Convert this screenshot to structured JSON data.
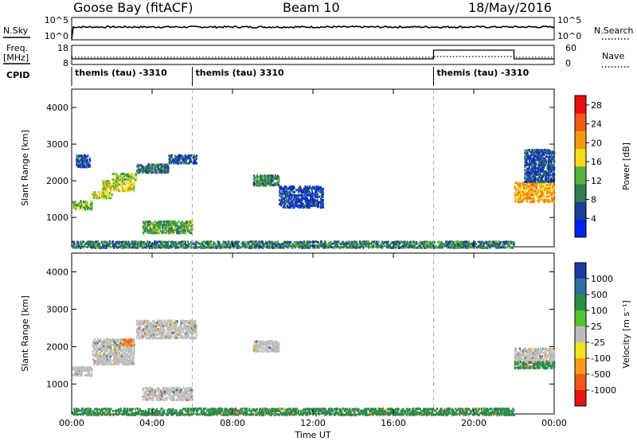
{
  "header": {
    "site": "Goose Bay (fitACF)",
    "beam": "Beam 10",
    "date": "18/May/2016"
  },
  "strips": {
    "nsky_label": "N.Sky",
    "nsky_ticks": [
      "10^5",
      "10^0"
    ],
    "nsearch_label": "N.Search",
    "nsearch_ticks": [
      "10^5",
      "10^0"
    ],
    "freq_label_line1": "Freq.",
    "freq_label_line2": "[MHz]",
    "freq_ticks": [
      "18",
      "8"
    ],
    "nave_label": "Nave",
    "nave_ticks": [
      "60",
      "0"
    ],
    "cpid_label": "CPID"
  },
  "cpid_segments": [
    {
      "start_hour": 0,
      "end_hour": 6,
      "label": "themis (tau) -3310"
    },
    {
      "start_hour": 6,
      "end_hour": 18,
      "label": "themis (tau) 3310"
    },
    {
      "start_hour": 18,
      "end_hour": 24,
      "label": "themis (tau) -3310"
    }
  ],
  "colors": {
    "power_scale": [
      "#0022ee",
      "#1c3f9a",
      "#2e7d52",
      "#55b33a",
      "#f2dc1d",
      "#f39a14",
      "#ef5a16",
      "#e81010"
    ],
    "velocity_scale": [
      "#1b3aa6",
      "#2d6f9a",
      "#2c8c46",
      "#54c433",
      "#bdbdbd",
      "#f1e21e",
      "#f59c17",
      "#f05a16",
      "#e41414"
    ],
    "ground_scatter": "#bfbfbf"
  },
  "chart_data": [
    {
      "type": "heatmap",
      "panel": "power",
      "x_unit": "hour UT",
      "xlim": [
        0,
        24
      ],
      "ylim": [
        200,
        4500
      ],
      "ylabel": "Slant Range [km]",
      "xlabel": "",
      "yticks": [
        "1000",
        "2000",
        "3000",
        "4000"
      ],
      "xticks": [
        "00:00",
        "04:00",
        "08:00",
        "12:00",
        "16:00",
        "20:00",
        "00:00"
      ],
      "colorbar": {
        "title": "Power [dB]",
        "ticks": [
          "4",
          "8",
          "12",
          "16",
          "20",
          "24",
          "28"
        ],
        "range": [
          0,
          30
        ]
      },
      "regions": [
        {
          "t0": 0.0,
          "t1": 1.0,
          "r0": 1250,
          "r1": 1500,
          "value": 13
        },
        {
          "t0": 1.0,
          "t1": 2.0,
          "r0": 1550,
          "r1": 1750,
          "value": 16
        },
        {
          "t0": 1.5,
          "t1": 3.1,
          "r0": 1750,
          "r1": 2050,
          "value": 17
        },
        {
          "t0": 2.0,
          "t1": 3.2,
          "r0": 2050,
          "r1": 2250,
          "value": 14
        },
        {
          "t0": 3.2,
          "t1": 4.8,
          "r0": 2250,
          "r1": 2500,
          "value": 8
        },
        {
          "t0": 4.8,
          "t1": 6.2,
          "r0": 2500,
          "r1": 2750,
          "value": 6
        },
        {
          "t0": 0.2,
          "t1": 0.9,
          "r0": 2400,
          "r1": 2750,
          "value": 6
        },
        {
          "t0": 3.5,
          "t1": 6.0,
          "r0": 600,
          "r1": 950,
          "value": 12
        },
        {
          "t0": 9.0,
          "t1": 10.3,
          "r0": 1900,
          "r1": 2200,
          "value": 10
        },
        {
          "t0": 10.3,
          "t1": 12.5,
          "r0": 1300,
          "r1": 1900,
          "value": 5
        },
        {
          "t0": 22.0,
          "t1": 24.0,
          "r0": 1450,
          "r1": 2000,
          "value": 20
        },
        {
          "t0": 22.5,
          "t1": 24.0,
          "r0": 2000,
          "r1": 2900,
          "value": 6
        },
        {
          "t0": 0.0,
          "t1": 22.0,
          "r0": 200,
          "r1": 400,
          "value": 9
        }
      ]
    },
    {
      "type": "heatmap",
      "panel": "velocity",
      "x_unit": "hour UT",
      "xlim": [
        0,
        24
      ],
      "ylim": [
        200,
        4500
      ],
      "ylabel": "Slant Range [km]",
      "xlabel": "Time UT",
      "yticks": [
        "1000",
        "2000",
        "3000",
        "4000"
      ],
      "xticks": [
        "00:00",
        "04:00",
        "08:00",
        "12:00",
        "16:00",
        "20:00",
        "00:00"
      ],
      "colorbar": {
        "title": "Velocity [m s⁻¹]",
        "ticks": [
          "1000",
          "500",
          "100",
          "25",
          "-25",
          "-100",
          "-500",
          "-1000"
        ]
      },
      "regions": [
        {
          "t0": 0.0,
          "t1": 1.0,
          "r0": 1250,
          "r1": 1500,
          "value": 0
        },
        {
          "t0": 1.0,
          "t1": 3.1,
          "r0": 1550,
          "r1": 2250,
          "value": 0
        },
        {
          "t0": 2.5,
          "t1": 3.0,
          "r0": 2050,
          "r1": 2250,
          "value": -300
        },
        {
          "t0": 3.2,
          "t1": 6.2,
          "r0": 2250,
          "r1": 2750,
          "value": 0
        },
        {
          "t0": 3.5,
          "t1": 6.0,
          "r0": 600,
          "r1": 950,
          "value": 0
        },
        {
          "t0": 9.0,
          "t1": 10.3,
          "r0": 1900,
          "r1": 2200,
          "value": 0
        },
        {
          "t0": 22.0,
          "t1": 24.0,
          "r0": 1450,
          "r1": 2000,
          "value": 0
        },
        {
          "t0": 22.0,
          "t1": 24.0,
          "r0": 1450,
          "r1": 1650,
          "value": 200
        },
        {
          "t0": 0.0,
          "t1": 22.0,
          "r0": 200,
          "r1": 400,
          "value": 150
        }
      ]
    }
  ]
}
